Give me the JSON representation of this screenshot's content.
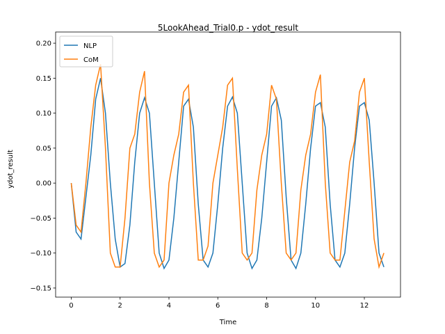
{
  "chart_data": {
    "type": "line",
    "title": "5LookAhead_Trial0.p - ydot_result",
    "xlabel": "Time",
    "ylabel": "ydot_result",
    "x": [
      0,
      0.2,
      0.4,
      0.6,
      0.8,
      1.0,
      1.2,
      1.4,
      1.6,
      1.8,
      2.0,
      2.2,
      2.4,
      2.6,
      2.8,
      3.0,
      3.2,
      3.4,
      3.6,
      3.8,
      4.0,
      4.2,
      4.4,
      4.6,
      4.8,
      5.0,
      5.2,
      5.4,
      5.6,
      5.8,
      6.0,
      6.2,
      6.4,
      6.6,
      6.8,
      7.0,
      7.2,
      7.4,
      7.6,
      7.8,
      8.0,
      8.2,
      8.4,
      8.6,
      8.8,
      9.0,
      9.2,
      9.4,
      9.6,
      9.8,
      10.0,
      10.2,
      10.4,
      10.6,
      10.8,
      11.0,
      11.2,
      11.4,
      11.6,
      11.8,
      12.0,
      12.2,
      12.4,
      12.6,
      12.8
    ],
    "series": [
      {
        "name": "NLP",
        "color": "#1f77b4",
        "values": [
          0,
          -0.07,
          -0.08,
          -0.02,
          0.04,
          0.12,
          0.15,
          0.1,
          0.0,
          -0.08,
          -0.12,
          -0.115,
          -0.06,
          0.03,
          0.1,
          0.122,
          0.1,
          0.0,
          -0.1,
          -0.122,
          -0.11,
          -0.05,
          0.03,
          0.11,
          0.12,
          0.08,
          -0.03,
          -0.11,
          -0.12,
          -0.1,
          -0.03,
          0.05,
          0.11,
          0.123,
          0.1,
          0.0,
          -0.1,
          -0.122,
          -0.11,
          -0.05,
          0.03,
          0.11,
          0.122,
          0.09,
          -0.02,
          -0.11,
          -0.122,
          -0.1,
          -0.03,
          0.05,
          0.11,
          0.115,
          0.08,
          -0.03,
          -0.11,
          -0.12,
          -0.1,
          -0.03,
          0.05,
          0.11,
          0.115,
          0.09,
          0.0,
          -0.1,
          -0.12
        ]
      },
      {
        "name": "CoM",
        "color": "#ff7f0e",
        "values": [
          0,
          -0.06,
          -0.07,
          0.0,
          0.08,
          0.14,
          0.17,
          0.05,
          -0.1,
          -0.12,
          -0.12,
          -0.05,
          0.05,
          0.07,
          0.13,
          0.16,
          0.0,
          -0.1,
          -0.12,
          -0.11,
          0.0,
          0.04,
          0.07,
          0.13,
          0.14,
          0.0,
          -0.11,
          -0.11,
          -0.09,
          0.0,
          0.04,
          0.08,
          0.14,
          0.15,
          0.02,
          -0.1,
          -0.11,
          -0.1,
          -0.01,
          0.04,
          0.07,
          0.14,
          0.12,
          0.0,
          -0.1,
          -0.11,
          -0.1,
          -0.01,
          0.04,
          0.07,
          0.13,
          0.155,
          0.0,
          -0.1,
          -0.11,
          -0.11,
          -0.04,
          0.03,
          0.06,
          0.13,
          0.15,
          0.03,
          -0.08,
          -0.12,
          -0.1
        ]
      }
    ],
    "xlim": [
      -0.64,
      13.48
    ],
    "ylim": [
      -0.163,
      0.216
    ],
    "xticks": [
      0,
      2,
      4,
      6,
      8,
      10,
      12
    ],
    "yticks": [
      {
        "value": -0.15,
        "label": "−0.15"
      },
      {
        "value": -0.1,
        "label": "−0.10"
      },
      {
        "value": -0.05,
        "label": "−0.05"
      },
      {
        "value": 0,
        "label": "0.00"
      },
      {
        "value": 0.05,
        "label": "0.05"
      },
      {
        "value": 0.1,
        "label": "0.10"
      },
      {
        "value": 0.15,
        "label": "0.15"
      },
      {
        "value": 0.2,
        "label": "0.20"
      }
    ],
    "legend": "upper left"
  }
}
